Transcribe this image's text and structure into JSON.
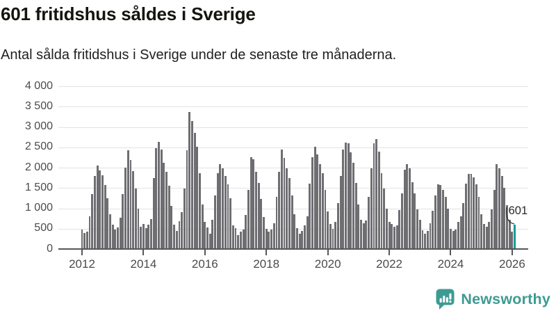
{
  "header": {
    "title": "601 fritidshus såldes i Sverige",
    "subtitle": "Antal sålda fritidshus i Sverige under de senaste tre månaderna."
  },
  "chart_data": {
    "type": "bar",
    "title": "601 fritidshus såldes i Sverige",
    "subtitle": "Antal sålda fritidshus i Sverige under de senaste tre månaderna.",
    "frequency": "monthly",
    "start_month": "2012-01",
    "end_month": "2026-02",
    "ylim": [
      0,
      4000
    ],
    "y_tick_step": 500,
    "grid": true,
    "bar_color": "#6e6e72",
    "highlight_color": "#00a09a",
    "axis_color": "#55565a",
    "y_tick_labels": [
      "0",
      "500",
      "1 000",
      "1 500",
      "2 000",
      "2 500",
      "3 000",
      "3 500",
      "4 000"
    ],
    "x_tick_labels": [
      "2012",
      "2014",
      "2016",
      "2018",
      "2020",
      "2022",
      "2024",
      "2026"
    ],
    "annotation": {
      "label": "601",
      "value": 601,
      "month": "2026-02"
    },
    "values": [
      480,
      400,
      430,
      800,
      1350,
      1800,
      2060,
      1930,
      1820,
      1575,
      1250,
      860,
      600,
      480,
      530,
      770,
      1350,
      2000,
      2430,
      2180,
      1920,
      1490,
      1000,
      550,
      610,
      520,
      600,
      740,
      1750,
      2480,
      2640,
      2440,
      2120,
      1890,
      1550,
      1060,
      600,
      450,
      680,
      910,
      1490,
      2430,
      3360,
      3150,
      2850,
      2520,
      1860,
      1090,
      660,
      530,
      380,
      710,
      1310,
      1870,
      2080,
      1980,
      1790,
      1590,
      1240,
      590,
      510,
      340,
      430,
      480,
      830,
      1460,
      2250,
      2210,
      1890,
      1620,
      1230,
      780,
      490,
      430,
      480,
      640,
      1290,
      1900,
      2440,
      2240,
      1990,
      1740,
      1320,
      860,
      510,
      380,
      450,
      590,
      800,
      1600,
      2250,
      2510,
      2320,
      2080,
      1870,
      1460,
      930,
      610,
      490,
      670,
      1130,
      1790,
      2440,
      2620,
      2600,
      2370,
      2120,
      1620,
      1100,
      720,
      640,
      700,
      1290,
      1980,
      2600,
      2700,
      2390,
      1870,
      1490,
      1000,
      660,
      610,
      550,
      590,
      950,
      1360,
      1950,
      2080,
      1990,
      1640,
      1360,
      970,
      720,
      470,
      380,
      440,
      630,
      940,
      1320,
      1590,
      1580,
      1460,
      1290,
      1000,
      490,
      450,
      480,
      660,
      800,
      1130,
      1600,
      1850,
      1850,
      1760,
      1590,
      1280,
      860,
      610,
      550,
      670,
      970,
      1450,
      2080,
      1990,
      1790,
      1510,
      1070,
      710,
      430,
      601
    ]
  },
  "branding": {
    "logo_text": "Newsworthy",
    "logo_color": "#3d9b93",
    "logo_icon": "bar-chart-speech-bubble-icon"
  }
}
